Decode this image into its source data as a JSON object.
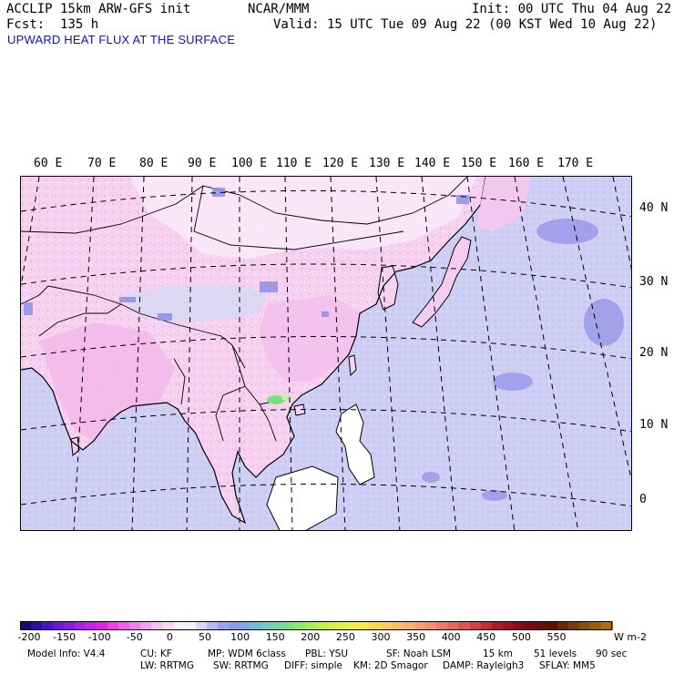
{
  "header": {
    "model": "ACCLIP 15km ARW-GFS init",
    "forecast": "Fcst:  135 h",
    "org": "NCAR/MMM",
    "init": "Init: 00 UTC Thu 04 Aug 22",
    "valid": "Valid: 15 UTC Tue 09 Aug 22 (00 KST Wed 10 Aug 22)"
  },
  "title": "UPWARD HEAT FLUX AT THE SURFACE",
  "map": {
    "lon_labels": [
      "60 E",
      "70 E",
      "80 E",
      "90 E",
      "100 E",
      "110 E",
      "120 E",
      "130 E",
      "140 E",
      "150 E",
      "160 E",
      "170 E"
    ],
    "lat_labels": [
      "40 N",
      "30 N",
      "20 N",
      "10 N",
      "0"
    ],
    "colors": {
      "ocean": "#cfcff5",
      "land_pink": "#f4c8ee",
      "land_light": "#fbe6f8",
      "land_lavender": "#dcd8f4",
      "negative_patch": "#8f8fe8",
      "positive_green": "#7de07d",
      "coast": "#000000"
    }
  },
  "colorbar": {
    "labels": [
      "-200",
      "-150",
      "-100",
      "-50",
      "0",
      "50",
      "100",
      "150",
      "200",
      "250",
      "300",
      "350",
      "400",
      "450",
      "500",
      "550"
    ],
    "unit": "W m-2",
    "stops": [
      "#1a0a6e",
      "#2c10a0",
      "#4a14c8",
      "#6a18d8",
      "#8a1ce0",
      "#aa20e8",
      "#c822ea",
      "#e024e6",
      "#ec40e6",
      "#f060e8",
      "#f280ea",
      "#f5a0ee",
      "#f7bff2",
      "#f9d8f6",
      "#fbeef9",
      "#f2f0fb",
      "#d6d6f8",
      "#b8b8f4",
      "#9ea0f0",
      "#8e9ce8",
      "#7faae0",
      "#74bcd0",
      "#70ccbc",
      "#70d8a0",
      "#78e080",
      "#90e868",
      "#a8ec58",
      "#c0ee50",
      "#d4f04c",
      "#e4f048",
      "#f0ec48",
      "#f8e44c",
      "#fcd858",
      "#fccc60",
      "#fcbe68",
      "#fbb070",
      "#f8a074",
      "#f49070",
      "#ee7c68",
      "#e66860",
      "#dc5454",
      "#d04048",
      "#c02c38",
      "#ae1c2c",
      "#9c1020",
      "#8a0c18",
      "#780c10",
      "#680e0c",
      "#5c1008",
      "#6a2808",
      "#7c3c08",
      "#8c4c0c",
      "#9c5c10",
      "#ac6c18"
    ]
  },
  "footer": {
    "line1": [
      "Model Info: V4.4",
      "CU: KF",
      "MP: WDM 6class",
      "PBL: YSU",
      "SF: Noah LSM",
      "15 km",
      "51 levels",
      "90 sec"
    ],
    "line2": [
      "LW: RRTMG",
      "SW: RRTMG",
      "DIFF: simple",
      "KM: 2D Smagor",
      "DAMP: Rayleigh3",
      "SFLAY: MM5"
    ]
  }
}
